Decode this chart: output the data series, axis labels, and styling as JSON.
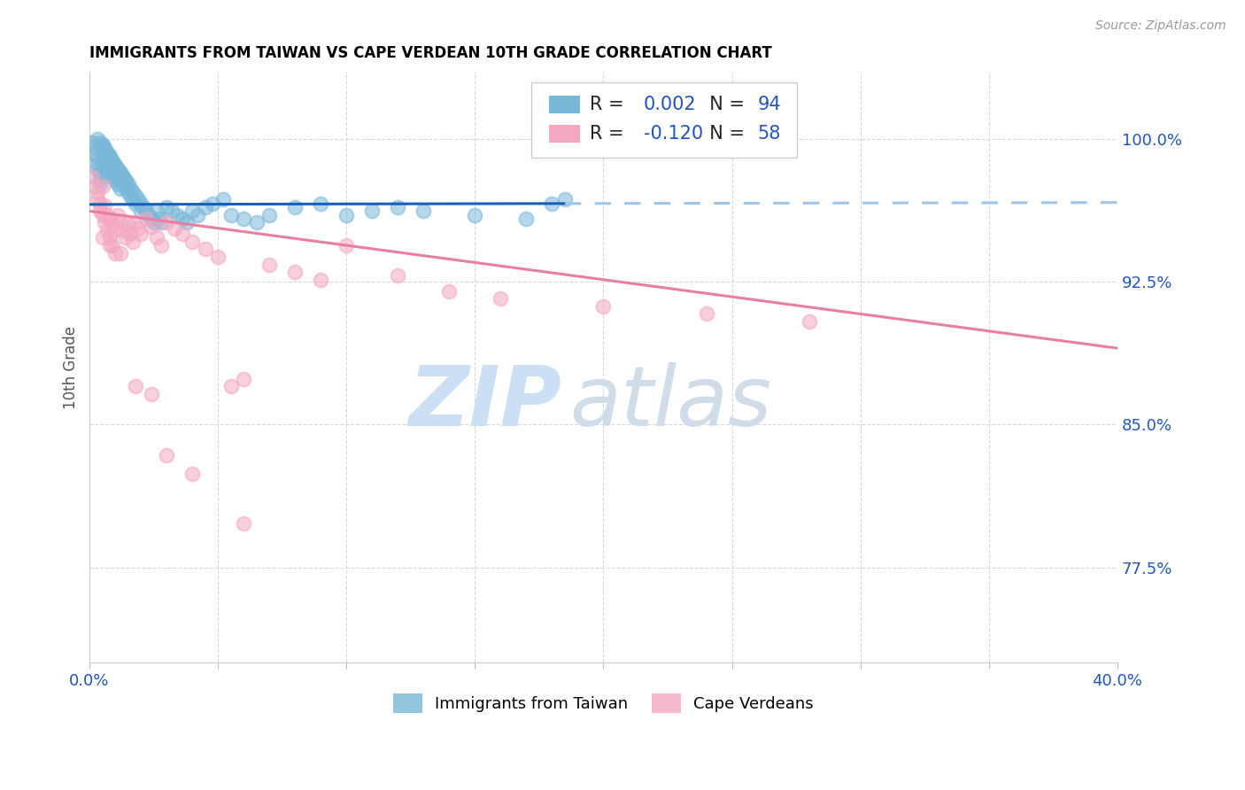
{
  "title": "IMMIGRANTS FROM TAIWAN VS CAPE VERDEAN 10TH GRADE CORRELATION CHART",
  "source_text": "Source: ZipAtlas.com",
  "ylabel": "10th Grade",
  "y_tick_positions": [
    0.775,
    0.85,
    0.925,
    1.0
  ],
  "y_tick_labels": [
    "77.5%",
    "85.0%",
    "92.5%",
    "100.0%"
  ],
  "x_min": 0.0,
  "x_max": 0.4,
  "y_min": 0.725,
  "y_max": 1.035,
  "taiwan_R": 0.002,
  "taiwan_N": 94,
  "capeverde_R": -0.12,
  "capeverde_N": 58,
  "taiwan_scatter_color": "#7ab8d9",
  "capeverde_scatter_color": "#f4a8c0",
  "taiwan_line_color_solid": "#1b5eb8",
  "taiwan_line_color_dash": "#a0c4e8",
  "capeverde_line_color": "#e87fa0",
  "taiwan_line_solid_end": 0.185,
  "watermark_zip_color": "#cce0f5",
  "watermark_atlas_color": "#d0dce8",
  "grid_color": "#d8d8d8",
  "title_fontsize": 12,
  "source_fontsize": 10,
  "tick_label_color": "#888888",
  "right_tick_color": "#2255bb",
  "taiwan_scatter_x": [
    0.001,
    0.002,
    0.002,
    0.003,
    0.003,
    0.003,
    0.004,
    0.004,
    0.004,
    0.005,
    0.005,
    0.005,
    0.005,
    0.006,
    0.006,
    0.006,
    0.007,
    0.007,
    0.007,
    0.007,
    0.008,
    0.008,
    0.008,
    0.009,
    0.009,
    0.009,
    0.01,
    0.01,
    0.01,
    0.011,
    0.011,
    0.011,
    0.012,
    0.012,
    0.012,
    0.013,
    0.013,
    0.014,
    0.014,
    0.015,
    0.015,
    0.016,
    0.016,
    0.017,
    0.017,
    0.018,
    0.018,
    0.019,
    0.02,
    0.02,
    0.021,
    0.022,
    0.023,
    0.024,
    0.025,
    0.026,
    0.027,
    0.028,
    0.03,
    0.032,
    0.034,
    0.036,
    0.038,
    0.04,
    0.042,
    0.045,
    0.048,
    0.052,
    0.055,
    0.06,
    0.065,
    0.07,
    0.08,
    0.09,
    0.1,
    0.11,
    0.12,
    0.13,
    0.15,
    0.17,
    0.003,
    0.004,
    0.005,
    0.006,
    0.007,
    0.008,
    0.009,
    0.01,
    0.011,
    0.012,
    0.013,
    0.014,
    0.18,
    0.185
  ],
  "taiwan_scatter_y": [
    0.998,
    0.995,
    0.992,
    0.99,
    0.987,
    0.984,
    0.982,
    0.979,
    0.976,
    0.997,
    0.993,
    0.989,
    0.985,
    0.995,
    0.991,
    0.987,
    0.993,
    0.989,
    0.985,
    0.981,
    0.991,
    0.987,
    0.983,
    0.988,
    0.984,
    0.98,
    0.986,
    0.982,
    0.978,
    0.984,
    0.98,
    0.976,
    0.982,
    0.978,
    0.974,
    0.98,
    0.976,
    0.978,
    0.974,
    0.976,
    0.972,
    0.974,
    0.97,
    0.972,
    0.968,
    0.97,
    0.966,
    0.968,
    0.966,
    0.962,
    0.964,
    0.962,
    0.96,
    0.958,
    0.956,
    0.962,
    0.958,
    0.956,
    0.964,
    0.962,
    0.96,
    0.958,
    0.956,
    0.962,
    0.96,
    0.964,
    0.966,
    0.968,
    0.96,
    0.958,
    0.956,
    0.96,
    0.964,
    0.966,
    0.96,
    0.962,
    0.964,
    0.962,
    0.96,
    0.958,
    1.0,
    0.998,
    0.996,
    0.994,
    0.992,
    0.99,
    0.988,
    0.986,
    0.984,
    0.982,
    0.98,
    0.978,
    0.966,
    0.968
  ],
  "capeverde_scatter_x": [
    0.001,
    0.002,
    0.003,
    0.003,
    0.004,
    0.004,
    0.005,
    0.005,
    0.006,
    0.006,
    0.007,
    0.007,
    0.008,
    0.008,
    0.009,
    0.009,
    0.01,
    0.01,
    0.011,
    0.012,
    0.013,
    0.014,
    0.015,
    0.016,
    0.017,
    0.018,
    0.019,
    0.02,
    0.022,
    0.024,
    0.026,
    0.028,
    0.03,
    0.033,
    0.036,
    0.04,
    0.045,
    0.05,
    0.055,
    0.06,
    0.07,
    0.08,
    0.09,
    0.1,
    0.12,
    0.14,
    0.16,
    0.2,
    0.24,
    0.28,
    0.005,
    0.008,
    0.012,
    0.018,
    0.024,
    0.03,
    0.04,
    0.06
  ],
  "capeverde_scatter_y": [
    0.98,
    0.975,
    0.972,
    0.968,
    0.966,
    0.962,
    0.975,
    0.96,
    0.965,
    0.956,
    0.96,
    0.952,
    0.958,
    0.948,
    0.955,
    0.944,
    0.952,
    0.94,
    0.96,
    0.956,
    0.952,
    0.948,
    0.955,
    0.95,
    0.946,
    0.956,
    0.953,
    0.95,
    0.958,
    0.954,
    0.948,
    0.944,
    0.956,
    0.953,
    0.95,
    0.946,
    0.942,
    0.938,
    0.87,
    0.874,
    0.934,
    0.93,
    0.926,
    0.944,
    0.928,
    0.92,
    0.916,
    0.912,
    0.908,
    0.904,
    0.948,
    0.944,
    0.94,
    0.87,
    0.866,
    0.834,
    0.824,
    0.798
  ],
  "taiwan_trend_x0": 0.0,
  "taiwan_trend_y0": 0.9655,
  "taiwan_trend_x1": 0.4,
  "taiwan_trend_y1": 0.9665,
  "capeverde_trend_x0": 0.0,
  "capeverde_trend_y0": 0.962,
  "capeverde_trend_x1": 0.4,
  "capeverde_trend_y1": 0.89
}
